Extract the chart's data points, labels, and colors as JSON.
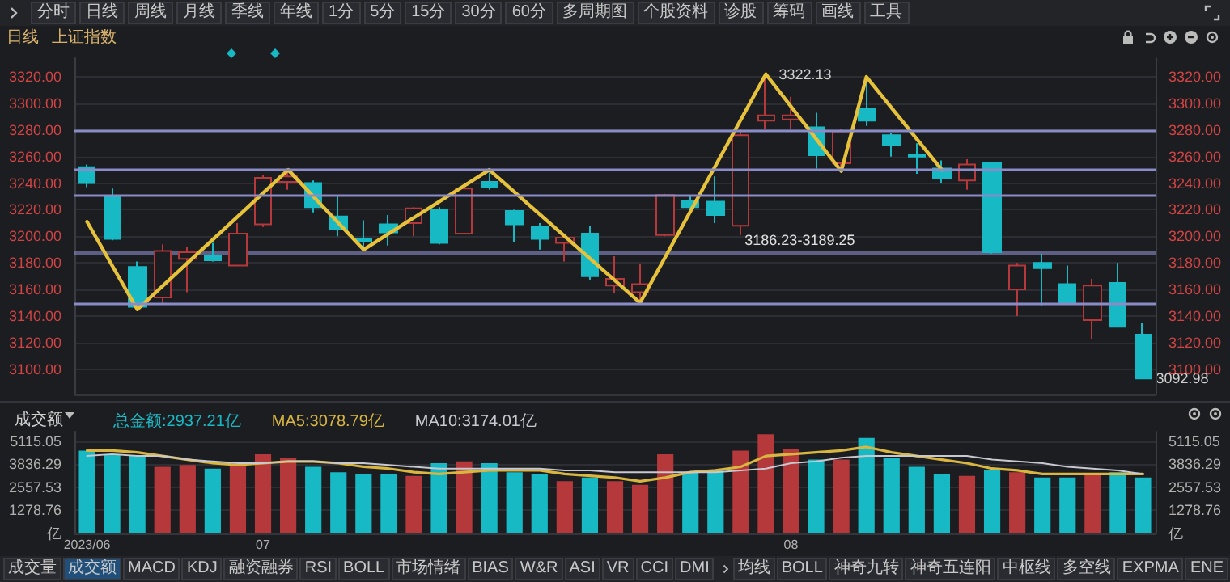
{
  "chart_data": [
    {
      "type": "candlestick",
      "title": "上证指数",
      "subtitle": "日线",
      "categories": [
        null,
        null,
        null,
        null,
        null,
        null,
        null,
        null,
        null,
        null,
        null,
        null,
        null,
        null,
        null,
        null,
        null,
        null,
        null,
        null,
        null,
        null,
        null,
        null,
        null,
        null,
        null,
        null,
        null,
        null,
        null,
        null,
        null,
        null,
        null,
        null,
        null,
        null,
        null,
        null,
        null,
        null,
        null
      ],
      "ohlc": [
        [
          3252,
          3254,
          3237,
          3240
        ],
        [
          3230,
          3236,
          3197,
          3198
        ],
        [
          3177,
          3181,
          3145,
          3147
        ],
        [
          3154,
          3194,
          3149,
          3189
        ],
        [
          3183,
          3192,
          3158,
          3188
        ],
        [
          3185,
          3195,
          3181,
          3182
        ],
        [
          3178,
          3210,
          3178,
          3202
        ],
        [
          3209,
          3246,
          3207,
          3244
        ],
        [
          3241,
          3249,
          3235,
          3245
        ],
        [
          3240,
          3242,
          3218,
          3222
        ],
        [
          3215,
          3230,
          3200,
          3205
        ],
        [
          3198,
          3212,
          3190,
          3196
        ],
        [
          3209,
          3216,
          3193,
          3203
        ],
        [
          3210,
          3222,
          3200,
          3221
        ],
        [
          3220,
          3222,
          3194,
          3195
        ],
        [
          3202,
          3237,
          3202,
          3236
        ],
        [
          3241,
          3248,
          3235,
          3237
        ],
        [
          3219,
          3220,
          3196,
          3209
        ],
        [
          3207,
          3210,
          3190,
          3198
        ],
        [
          3195,
          3200,
          3181,
          3199
        ],
        [
          3202,
          3208,
          3167,
          3170
        ],
        [
          3163,
          3185,
          3157,
          3168
        ],
        [
          3158,
          3179,
          3151,
          3164
        ],
        [
          3201,
          3232,
          3200,
          3231
        ],
        [
          3227,
          3230,
          3219,
          3222
        ],
        [
          3226,
          3245,
          3210,
          3216
        ],
        [
          3208,
          3281,
          3201,
          3276
        ],
        [
          3287,
          3322.13,
          3281,
          3291
        ],
        [
          3288,
          3305,
          3281,
          3291
        ],
        [
          3282,
          3293,
          3251,
          3261
        ],
        [
          3255,
          3281,
          3249,
          3279
        ],
        [
          3296,
          3318,
          3283,
          3287
        ],
        [
          3276,
          3278,
          3260,
          3269
        ],
        [
          3261,
          3270,
          3247,
          3260
        ],
        [
          3251,
          3257,
          3240,
          3244
        ],
        [
          3242,
          3258,
          3235,
          3254
        ],
        [
          3255,
          3256,
          3187,
          3188
        ],
        [
          3160,
          3180,
          3140,
          3178
        ],
        [
          3180,
          3187,
          3148,
          3176
        ],
        [
          3164,
          3178,
          3150,
          3150
        ],
        [
          3137,
          3168,
          3123,
          3163
        ],
        [
          3165,
          3180,
          3132,
          3132
        ],
        [
          3126,
          3135,
          3092.98,
          3092.98
        ]
      ],
      "colors": [
        "#17b9c4",
        "#17b9c4",
        "#17b9c4",
        "#b5383b",
        "#b5383b",
        "#17b9c4",
        "#b5383b",
        "#b5383b",
        "#b5383b",
        "#17b9c4",
        "#17b9c4",
        "#17b9c4",
        "#17b9c4",
        "#b5383b",
        "#17b9c4",
        "#b5383b",
        "#17b9c4",
        "#17b9c4",
        "#17b9c4",
        "#b5383b",
        "#17b9c4",
        "#b5383b",
        "#b5383b",
        "#b5383b",
        "#17b9c4",
        "#17b9c4",
        "#b5383b",
        "#b5383b",
        "#b5383b",
        "#17b9c4",
        "#b5383b",
        "#17b9c4",
        "#17b9c4",
        "#17b9c4",
        "#17b9c4",
        "#b5383b",
        "#17b9c4",
        "#b5383b",
        "#17b9c4",
        "#17b9c4",
        "#b5383b",
        "#17b9c4",
        "#17b9c4"
      ],
      "series": [
        {
          "type": "line",
          "color": "#e6c23a",
          "values": [
            3211,
            null,
            3145,
            null,
            null,
            null,
            null,
            null,
            3250,
            null,
            null,
            3190,
            null,
            null,
            null,
            null,
            3250,
            null,
            null,
            null,
            null,
            null,
            3150,
            null,
            null,
            null,
            null,
            3322,
            null,
            null,
            3249,
            3320,
            null,
            null,
            3250,
            null,
            null,
            null,
            null,
            null,
            null,
            null,
            null
          ]
        }
      ],
      "marker": "none",
      "ylim": [
        3081,
        3334
      ],
      "yticks": [
        {
          "value": 3100,
          "label": "3100.00"
        },
        {
          "value": 3120,
          "label": "3120.00"
        },
        {
          "value": 3140,
          "label": "3140.00"
        },
        {
          "value": 3160,
          "label": "3160.00"
        },
        {
          "value": 3180,
          "label": "3180.00"
        },
        {
          "value": 3200,
          "label": "3200.00"
        },
        {
          "value": 3220,
          "label": "3220.00"
        },
        {
          "value": 3240,
          "label": "3240.00"
        },
        {
          "value": 3260,
          "label": "3260.00"
        },
        {
          "value": 3280,
          "label": "3280.00"
        },
        {
          "value": 3300,
          "label": "3300.00"
        },
        {
          "value": 3320,
          "label": "3320.00"
        }
      ],
      "y2lim": [
        3081,
        3334
      ],
      "y2ticks": [
        {
          "value": 3100,
          "label": "3100.00"
        },
        {
          "value": 3120,
          "label": "3120.00"
        },
        {
          "value": 3140,
          "label": "3140.00"
        },
        {
          "value": 3160,
          "label": "3160.00"
        },
        {
          "value": 3180,
          "label": "3180.00"
        },
        {
          "value": 3200,
          "label": "3200.00"
        },
        {
          "value": 3220,
          "label": "3220.00"
        },
        {
          "value": 3240,
          "label": "3240.00"
        },
        {
          "value": 3260,
          "label": "3260.00"
        },
        {
          "value": 3280,
          "label": "3280.00"
        },
        {
          "value": 3300,
          "label": "3300.00"
        },
        {
          "value": 3320,
          "label": "3320.00"
        }
      ],
      "tick_labels": "y",
      "grid": "y",
      "ref_lines": [
        {
          "axis": "y",
          "value": 3280,
          "color": "#8a8cc8"
        },
        {
          "axis": "y",
          "value": 3250,
          "color": "#8a8cc8"
        },
        {
          "axis": "y",
          "value": 3231,
          "color": "#8a8cc8"
        },
        {
          "axis": "y",
          "value": 3150,
          "color": "#8a8cc8"
        }
      ],
      "bands": [
        {
          "axis": "y",
          "from": 3186.23,
          "to": 3189.25,
          "label": "3186.23-3189.25",
          "color": "#8a8cc8"
        }
      ],
      "value_labels": [
        null,
        null,
        null,
        null,
        null,
        null,
        null,
        null,
        null,
        null,
        null,
        null,
        null,
        null,
        null,
        null,
        null,
        null,
        null,
        null,
        null,
        null,
        null,
        null,
        null,
        null,
        null,
        "3322.13",
        null,
        null,
        null,
        null,
        null,
        null,
        null,
        null,
        null,
        null,
        null,
        null,
        null,
        null,
        "3092.98"
      ],
      "annotations": [
        "分时",
        "日线",
        "周线",
        "月线",
        "季线",
        "年线",
        "1分",
        "5分",
        "15分",
        "30分",
        "60分",
        "多周期图",
        "个股资料",
        "诊股",
        "筹码",
        "画线",
        "工具"
      ]
    },
    {
      "type": "bar",
      "title": "成交额",
      "categories": [
        "2023/06",
        null,
        null,
        null,
        null,
        null,
        null,
        "07",
        null,
        null,
        null,
        null,
        null,
        null,
        null,
        null,
        null,
        null,
        null,
        null,
        null,
        null,
        null,
        null,
        null,
        null,
        null,
        null,
        "08",
        null,
        null,
        null,
        null,
        null,
        null,
        null,
        null,
        null,
        null,
        null,
        null,
        null,
        null
      ],
      "series": [
        {
          "name": "总金额:2937.21亿",
          "type": "bar",
          "color": "#17b9c4",
          "colors": [
            "#17b9c4",
            "#17b9c4",
            "#17b9c4",
            "#b5383b",
            "#b5383b",
            "#17b9c4",
            "#b5383b",
            "#b5383b",
            "#b5383b",
            "#17b9c4",
            "#17b9c4",
            "#17b9c4",
            "#17b9c4",
            "#b5383b",
            "#17b9c4",
            "#b5383b",
            "#17b9c4",
            "#17b9c4",
            "#17b9c4",
            "#b5383b",
            "#17b9c4",
            "#b5383b",
            "#b5383b",
            "#b5383b",
            "#17b9c4",
            "#17b9c4",
            "#b5383b",
            "#b5383b",
            "#b5383b",
            "#17b9c4",
            "#b5383b",
            "#17b9c4",
            "#17b9c4",
            "#17b9c4",
            "#17b9c4",
            "#b5383b",
            "#17b9c4",
            "#b5383b",
            "#17b9c4",
            "#17b9c4",
            "#b5383b",
            "#17b9c4",
            "#17b9c4"
          ],
          "values": [
            4600,
            4400,
            4300,
            3700,
            3800,
            3600,
            3800,
            4400,
            4200,
            3700,
            3400,
            3300,
            3300,
            3200,
            3900,
            4000,
            3900,
            3400,
            3300,
            2900,
            3100,
            2900,
            2700,
            4400,
            3400,
            3500,
            4600,
            5500,
            4700,
            4100,
            4100,
            5300,
            4200,
            3700,
            3300,
            3200,
            3500,
            3400,
            3100,
            3100,
            3300,
            3400,
            3100
          ]
        },
        {
          "name": "MA5:3078.79亿",
          "type": "line",
          "color": "#d8b640",
          "values": [
            4600,
            4600,
            4500,
            4300,
            4100,
            3900,
            3800,
            3900,
            4000,
            4000,
            3900,
            3700,
            3600,
            3400,
            3300,
            3400,
            3500,
            3500,
            3500,
            3300,
            3200,
            3100,
            2900,
            3100,
            3400,
            3500,
            3700,
            4300,
            4400,
            4500,
            4600,
            4800,
            4500,
            4300,
            4100,
            3900,
            3600,
            3500,
            3300,
            3300,
            3300,
            3300,
            3300
          ]
        },
        {
          "name": "MA10:3174.01亿",
          "type": "line",
          "color": "#c8c8d0",
          "values": [
            4300,
            4400,
            4300,
            4300,
            4100,
            4000,
            3900,
            3900,
            4000,
            4000,
            3900,
            3900,
            3800,
            3700,
            3600,
            3600,
            3600,
            3600,
            3600,
            3500,
            3500,
            3400,
            3400,
            3400,
            3400,
            3400,
            3500,
            3600,
            3900,
            4000,
            4200,
            4300,
            4300,
            4300,
            4300,
            4300,
            4100,
            4000,
            3900,
            3700,
            3600,
            3500,
            3300
          ]
        }
      ],
      "marker": "none",
      "legend": "top left",
      "ylim": [
        0,
        5650
      ],
      "yticks": [
        {
          "value": 0,
          "label": "亿"
        },
        1278.76,
        2557.53,
        3836.29,
        5115.05
      ],
      "y2lim": [
        0,
        5650
      ],
      "y2ticks": [
        {
          "value": 0,
          "label": "亿"
        },
        1278.76,
        2557.53,
        3836.29,
        5115.05
      ],
      "grid": "y",
      "annotations": [
        "成交量",
        "成交额",
        "MACD",
        "KDJ",
        "融资融券",
        "RSI",
        "BOLL",
        "市场情绪",
        "BIAS",
        "W&R",
        "ASI",
        "VR",
        "CCI",
        "DMI",
        "均线",
        "BOLL",
        "神奇九转",
        "神奇五连阳",
        "中枢线",
        "多空线",
        "EXPMA",
        "ENE"
      ]
    }
  ]
}
